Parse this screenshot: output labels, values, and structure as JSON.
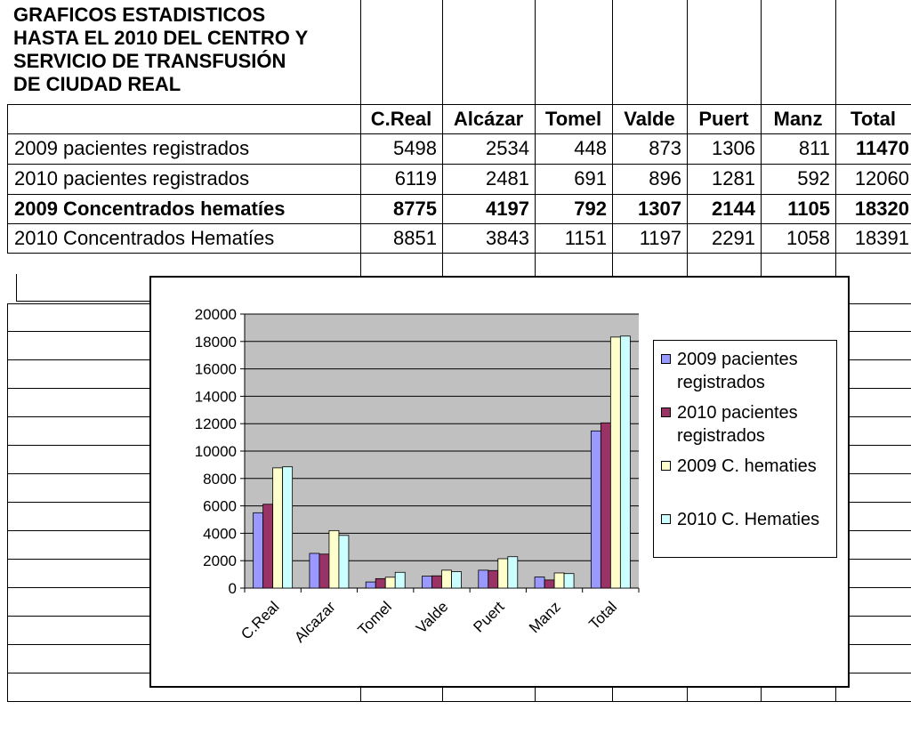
{
  "sheet": {
    "title": "GRAFICOS ESTADISTICOS\nHASTA EL 2010 DEL CENTRO Y\nSERVICIO DE TRANSFUSIÓN\nDE CIUDAD REAL",
    "columns": [
      "C.Real",
      "Alcázar",
      "Tomel",
      "Valde",
      "Puert",
      "Manz",
      "Total"
    ],
    "rows": [
      {
        "label": "2009 pacientes registrados",
        "values": [
          "5498",
          "2534",
          "448",
          "873",
          "1306",
          "811",
          "11470"
        ],
        "bold": false
      },
      {
        "label": "2010 pacientes registrados",
        "values": [
          "6119",
          "2481",
          "691",
          "896",
          "1281",
          "592",
          "12060"
        ],
        "bold": false
      },
      {
        "label": "2009 Concentrados  hematíes",
        "values": [
          "8775",
          "4197",
          "792",
          "1307",
          "2144",
          "1105",
          "18320"
        ],
        "bold": true
      },
      {
        "label": "2010 Concentrados  Hematíes",
        "values": [
          "8851",
          "3843",
          "1151",
          "1197",
          "2291",
          "1058",
          "18391"
        ],
        "bold": false
      }
    ]
  },
  "chart_data": {
    "type": "bar",
    "title": "",
    "xlabel": "",
    "ylabel": "",
    "categories": [
      "C.Real",
      "Alcazar",
      "Tomel",
      "Valde",
      "Puert",
      "Manz",
      "Total"
    ],
    "ylim": [
      0,
      20000
    ],
    "yticks": [
      0,
      2000,
      4000,
      6000,
      8000,
      10000,
      12000,
      14000,
      16000,
      18000,
      20000
    ],
    "grid": true,
    "legend_position": "right",
    "series": [
      {
        "name": "2009 pacientes registrados",
        "color": "#9999ff",
        "values": [
          5498,
          2534,
          448,
          873,
          1306,
          811,
          11470
        ]
      },
      {
        "name": "2010 pacientes registrados",
        "color": "#993366",
        "values": [
          6119,
          2481,
          691,
          896,
          1281,
          592,
          12060
        ]
      },
      {
        "name": "2009 C. hematies",
        "color": "#ffffcc",
        "values": [
          8775,
          4197,
          792,
          1307,
          2144,
          1105,
          18320
        ]
      },
      {
        "name": "2010 C. Hematies",
        "color": "#ccffff",
        "values": [
          8851,
          3843,
          1151,
          1197,
          2291,
          1058,
          18391
        ]
      }
    ],
    "plot_background": "#c0c0c0"
  }
}
